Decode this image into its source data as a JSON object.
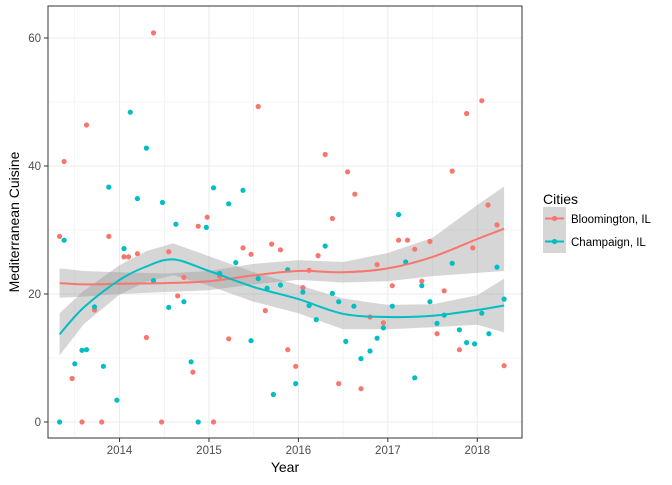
{
  "chart_data": {
    "type": "scatter",
    "xlabel": "Year",
    "ylabel": "Mediterranean Cuisine",
    "xlim": [
      2013.2,
      2018.5
    ],
    "ylim": [
      -2.5,
      65
    ],
    "x_ticks": [
      2014,
      2015,
      2016,
      2017,
      2018
    ],
    "y_ticks": [
      0,
      20,
      40,
      60
    ],
    "grid": true,
    "legend": {
      "title": "Cities",
      "position": "right",
      "entries": [
        "Bloomington, IL",
        "Champaign, IL"
      ]
    },
    "series": [
      {
        "name": "Bloomington, IL",
        "color": "#F8766D",
        "points": [
          [
            2013.33,
            29
          ],
          [
            2013.38,
            40.7
          ],
          [
            2013.47,
            6.8
          ],
          [
            2013.58,
            0
          ],
          [
            2013.63,
            46.4
          ],
          [
            2013.72,
            17.5
          ],
          [
            2013.8,
            0
          ],
          [
            2013.88,
            29
          ],
          [
            2014.05,
            25.8
          ],
          [
            2014.1,
            25.8
          ],
          [
            2014.2,
            26.3
          ],
          [
            2014.3,
            13.2
          ],
          [
            2014.38,
            60.8
          ],
          [
            2014.47,
            0
          ],
          [
            2014.55,
            26.6
          ],
          [
            2014.65,
            19.7
          ],
          [
            2014.72,
            22.6
          ],
          [
            2014.82,
            7.8
          ],
          [
            2014.88,
            30.6
          ],
          [
            2014.98,
            32
          ],
          [
            2015.05,
            0
          ],
          [
            2015.12,
            22.8
          ],
          [
            2015.22,
            13
          ],
          [
            2015.38,
            27.2
          ],
          [
            2015.47,
            26.2
          ],
          [
            2015.55,
            49.3
          ],
          [
            2015.63,
            17.4
          ],
          [
            2015.7,
            27.8
          ],
          [
            2015.8,
            26.9
          ],
          [
            2015.88,
            11.3
          ],
          [
            2015.97,
            8.7
          ],
          [
            2016.05,
            21
          ],
          [
            2016.12,
            23.7
          ],
          [
            2016.22,
            26
          ],
          [
            2016.3,
            41.8
          ],
          [
            2016.38,
            31.8
          ],
          [
            2016.45,
            6
          ],
          [
            2016.55,
            39.1
          ],
          [
            2016.63,
            35.6
          ],
          [
            2016.7,
            5.2
          ],
          [
            2016.8,
            16.4
          ],
          [
            2016.88,
            24.6
          ],
          [
            2016.95,
            15.5
          ],
          [
            2017.05,
            21.3
          ],
          [
            2017.12,
            28.4
          ],
          [
            2017.22,
            28.4
          ],
          [
            2017.3,
            27
          ],
          [
            2017.38,
            22
          ],
          [
            2017.47,
            28.2
          ],
          [
            2017.55,
            13.8
          ],
          [
            2017.63,
            20.5
          ],
          [
            2017.72,
            39.2
          ],
          [
            2017.8,
            11.3
          ],
          [
            2017.88,
            48.2
          ],
          [
            2017.95,
            27.2
          ],
          [
            2018.05,
            50.2
          ],
          [
            2018.12,
            33.9
          ],
          [
            2018.22,
            30.8
          ],
          [
            2018.3,
            8.8
          ]
        ]
      },
      {
        "name": "Champaign, IL",
        "color": "#00BFC4",
        "points": [
          [
            2013.33,
            0
          ],
          [
            2013.38,
            28.4
          ],
          [
            2013.5,
            9.1
          ],
          [
            2013.58,
            11.2
          ],
          [
            2013.63,
            11.3
          ],
          [
            2013.72,
            18
          ],
          [
            2013.82,
            8.7
          ],
          [
            2013.88,
            36.7
          ],
          [
            2013.97,
            3.4
          ],
          [
            2014.05,
            27.1
          ],
          [
            2014.12,
            48.4
          ],
          [
            2014.2,
            34.9
          ],
          [
            2014.3,
            42.8
          ],
          [
            2014.38,
            22.1
          ],
          [
            2014.48,
            34.3
          ],
          [
            2014.55,
            17.9
          ],
          [
            2014.63,
            30.9
          ],
          [
            2014.72,
            18.8
          ],
          [
            2014.8,
            9.4
          ],
          [
            2014.88,
            0
          ],
          [
            2014.97,
            30.4
          ],
          [
            2015.05,
            36.6
          ],
          [
            2015.12,
            23.2
          ],
          [
            2015.22,
            34.1
          ],
          [
            2015.3,
            24.9
          ],
          [
            2015.38,
            36.2
          ],
          [
            2015.47,
            12.7
          ],
          [
            2015.55,
            22.4
          ],
          [
            2015.65,
            20.9
          ],
          [
            2015.72,
            4.3
          ],
          [
            2015.8,
            21.4
          ],
          [
            2015.88,
            23.8
          ],
          [
            2015.97,
            6
          ],
          [
            2016.05,
            20.3
          ],
          [
            2016.12,
            18.2
          ],
          [
            2016.2,
            16
          ],
          [
            2016.3,
            27.5
          ],
          [
            2016.38,
            20.1
          ],
          [
            2016.45,
            18.8
          ],
          [
            2016.53,
            12.6
          ],
          [
            2016.62,
            18.1
          ],
          [
            2016.7,
            9.9
          ],
          [
            2016.8,
            11.1
          ],
          [
            2016.88,
            13.1
          ],
          [
            2016.95,
            14.7
          ],
          [
            2017.05,
            18.1
          ],
          [
            2017.12,
            32.4
          ],
          [
            2017.2,
            25
          ],
          [
            2017.3,
            6.9
          ],
          [
            2017.38,
            21.3
          ],
          [
            2017.47,
            18.8
          ],
          [
            2017.55,
            15.4
          ],
          [
            2017.63,
            16.7
          ],
          [
            2017.72,
            24.8
          ],
          [
            2017.8,
            14.4
          ],
          [
            2017.88,
            12.4
          ],
          [
            2017.97,
            12.2
          ],
          [
            2018.05,
            17
          ],
          [
            2018.13,
            13.8
          ],
          [
            2018.22,
            24.2
          ],
          [
            2018.3,
            19.2
          ]
        ]
      }
    ],
    "smooth": [
      {
        "series": "Bloomington, IL",
        "color": "#F8766D",
        "x": [
          2013.33,
          2013.6,
          2014.0,
          2014.5,
          2015.0,
          2015.5,
          2016.0,
          2016.5,
          2017.0,
          2017.5,
          2018.0,
          2018.3
        ],
        "y": [
          21.7,
          21.5,
          21.6,
          21.7,
          22.0,
          22.9,
          23.6,
          23.4,
          24.0,
          25.8,
          28.6,
          30.2
        ],
        "lower": [
          19.4,
          19.6,
          20.0,
          20.3,
          20.6,
          21.5,
          22.2,
          21.8,
          22.0,
          22.8,
          23.3,
          23.6
        ],
        "upper": [
          24.0,
          23.6,
          23.4,
          23.2,
          23.6,
          24.7,
          25.3,
          25.0,
          26.4,
          28.8,
          33.9,
          36.8
        ]
      },
      {
        "series": "Champaign, IL",
        "color": "#00BFC4",
        "x": [
          2013.33,
          2013.6,
          2014.0,
          2014.3,
          2014.6,
          2015.0,
          2015.5,
          2016.0,
          2016.5,
          2017.0,
          2017.5,
          2018.0,
          2018.3
        ],
        "y": [
          13.7,
          17.9,
          22.2,
          24.3,
          25.4,
          23.6,
          21.1,
          19.2,
          16.9,
          16.4,
          16.6,
          17.5,
          18.2
        ],
        "lower": [
          10.4,
          15.3,
          19.9,
          21.9,
          22.9,
          21.3,
          18.8,
          17.0,
          14.5,
          14.5,
          14.8,
          15.2,
          14.0
        ],
        "upper": [
          17.0,
          20.5,
          24.5,
          26.7,
          27.9,
          25.9,
          23.4,
          21.4,
          19.3,
          18.3,
          18.4,
          19.8,
          22.4
        ]
      }
    ]
  }
}
